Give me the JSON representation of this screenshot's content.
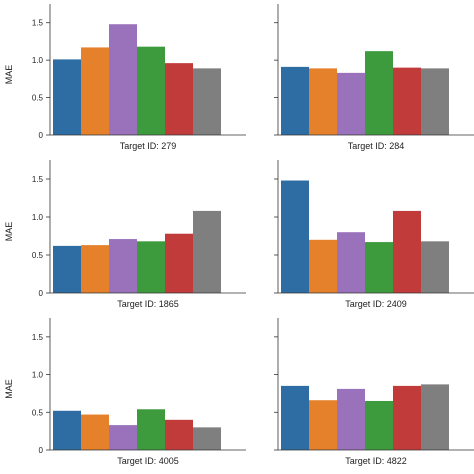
{
  "colors": [
    "#2e6da4",
    "#e5812a",
    "#9a72bb",
    "#3d9a3d",
    "#c23b3b",
    "#7f7f7f"
  ],
  "chart_data": [
    {
      "type": "bar",
      "xlabel": "Target ID: 279",
      "ylabel": "MAE",
      "ylim": [
        0,
        1.75
      ],
      "yticks": [
        "0",
        "0.5",
        "1.0",
        "1.5"
      ],
      "values": [
        1.01,
        1.17,
        1.48,
        1.18,
        0.96,
        0.89
      ]
    },
    {
      "type": "bar",
      "xlabel": "Target ID: 284",
      "ylabel": "",
      "ylim": [
        0,
        1.75
      ],
      "yticks": [
        "",
        "",
        "",
        ""
      ],
      "values": [
        0.91,
        0.89,
        0.83,
        1.12,
        0.9,
        0.89
      ]
    },
    {
      "type": "bar",
      "xlabel": "Target ID: 1865",
      "ylabel": "MAE",
      "ylim": [
        0,
        1.75
      ],
      "yticks": [
        "0",
        "0.5",
        "1.0",
        "1.5"
      ],
      "values": [
        0.62,
        0.63,
        0.71,
        0.68,
        0.78,
        1.08
      ]
    },
    {
      "type": "bar",
      "xlabel": "Target ID: 2409",
      "ylabel": "",
      "ylim": [
        0,
        1.75
      ],
      "yticks": [
        "",
        "",
        "",
        ""
      ],
      "values": [
        1.48,
        0.7,
        0.8,
        0.67,
        1.08,
        0.68
      ]
    },
    {
      "type": "bar",
      "xlabel": "Target ID: 4005",
      "ylabel": "MAE",
      "ylim": [
        0,
        1.75
      ],
      "yticks": [
        "0",
        "0.5",
        "1.0",
        "1.5"
      ],
      "values": [
        0.52,
        0.47,
        0.33,
        0.54,
        0.4,
        0.3
      ]
    },
    {
      "type": "bar",
      "xlabel": "Target ID: 4822",
      "ylabel": "",
      "ylim": [
        0,
        1.75
      ],
      "yticks": [
        "",
        "",
        "",
        ""
      ],
      "values": [
        0.85,
        0.66,
        0.81,
        0.65,
        0.85,
        0.87
      ]
    }
  ]
}
